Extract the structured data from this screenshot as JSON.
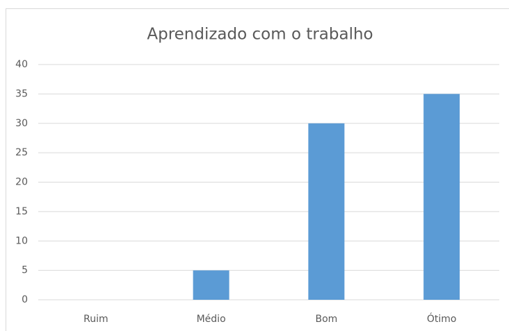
{
  "chart_data": {
    "type": "bar",
    "title": "Aprendizado com o trabalho",
    "categories": [
      "Ruim",
      "Médio",
      "Bom",
      "Ótimo"
    ],
    "values": [
      0,
      5,
      30,
      35
    ],
    "color": "#5b9bd5",
    "ylim": [
      0,
      40
    ],
    "yticks": [
      0,
      5,
      10,
      15,
      20,
      25,
      30,
      35,
      40
    ],
    "grid": true
  }
}
